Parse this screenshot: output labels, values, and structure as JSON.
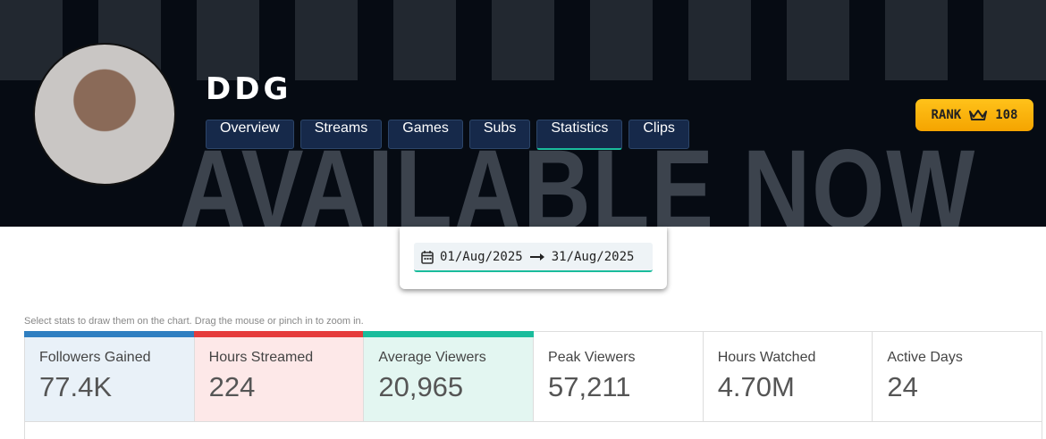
{
  "banner": {
    "background_text": "AVAILABLE NOW"
  },
  "profile": {
    "name": "DDG"
  },
  "nav": {
    "tabs": [
      "Overview",
      "Streams",
      "Games",
      "Subs",
      "Statistics",
      "Clips"
    ],
    "active": 4
  },
  "rank": {
    "label": "RANK",
    "value": "108"
  },
  "date_range": {
    "start": "01/Aug/2025",
    "end": "31/Aug/2025"
  },
  "hint": "Select stats to draw them on the chart. Drag the mouse or pinch in to zoom in.",
  "stats": [
    {
      "label": "Followers Gained",
      "value": "77.4K",
      "color": "#2f7fc1",
      "bg": "#e9f1f8"
    },
    {
      "label": "Hours Streamed",
      "value": "224",
      "color": "#e53c3c",
      "bg": "#fde8e8"
    },
    {
      "label": "Average Viewers",
      "value": "20,965",
      "color": "#1abc9c",
      "bg": "#e3f6f1"
    },
    {
      "label": "Peak Viewers",
      "value": "57,211"
    },
    {
      "label": "Hours Watched",
      "value": "4.70M"
    },
    {
      "label": "Active Days",
      "value": "24"
    }
  ]
}
